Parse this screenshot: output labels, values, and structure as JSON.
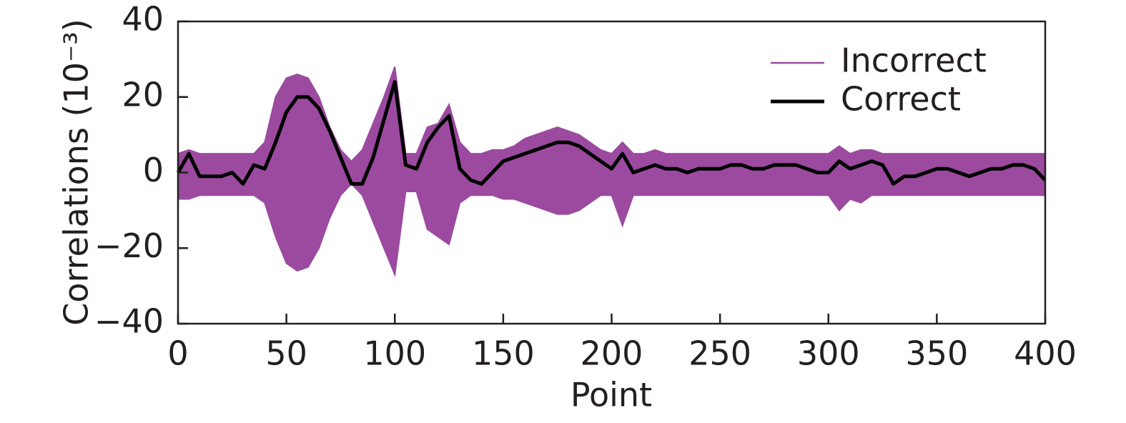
{
  "chart_data": {
    "type": "line",
    "xlabel": "Point",
    "ylabel": "Correlations (10⁻³)",
    "xlim": [
      0,
      400
    ],
    "xticks": [
      0,
      50,
      100,
      150,
      200,
      250,
      300,
      350,
      400
    ],
    "ylim": [
      -40,
      40
    ],
    "yticks": [
      {
        "value": -40,
        "label": "−40"
      },
      {
        "value": -20,
        "label": "−20"
      },
      0,
      20,
      40
    ],
    "legend": "upper right",
    "x": [
      0,
      5,
      10,
      15,
      20,
      25,
      30,
      35,
      40,
      45,
      50,
      55,
      60,
      65,
      70,
      75,
      80,
      85,
      90,
      95,
      100,
      105,
      110,
      115,
      120,
      125,
      130,
      135,
      140,
      145,
      150,
      155,
      160,
      165,
      170,
      175,
      180,
      185,
      190,
      195,
      200,
      205,
      210,
      215,
      220,
      225,
      230,
      235,
      240,
      245,
      250,
      255,
      260,
      265,
      270,
      275,
      280,
      285,
      290,
      295,
      300,
      305,
      310,
      315,
      320,
      325,
      330,
      335,
      340,
      345,
      350,
      355,
      360,
      365,
      370,
      375,
      380,
      385,
      390,
      395,
      400
    ],
    "series": [
      {
        "name": "Incorrect",
        "color": "#9b4a9f",
        "upper": [
          5,
          6,
          5,
          5,
          5,
          5,
          5,
          5,
          8,
          20,
          25,
          26,
          25,
          20,
          12,
          6,
          3,
          6,
          13,
          20,
          28,
          5,
          5,
          12,
          13,
          18,
          8,
          5,
          5,
          6,
          6,
          7,
          9,
          10,
          11,
          12,
          11,
          10,
          8,
          6,
          5,
          8,
          5,
          5,
          6,
          5,
          5,
          5,
          5,
          5,
          5,
          5,
          5,
          5,
          5,
          5,
          5,
          5,
          5,
          5,
          5,
          7,
          5,
          6,
          6,
          5,
          5,
          5,
          5,
          5,
          5,
          5,
          5,
          5,
          5,
          5,
          5,
          5,
          5,
          5,
          5
        ],
        "lower": [
          -7,
          -7,
          -6,
          -6,
          -6,
          -6,
          -6,
          -6,
          -8,
          -17,
          -24,
          -26,
          -25,
          -20,
          -12,
          -6,
          -3,
          -6,
          -13,
          -20,
          -27,
          -5,
          -5,
          -15,
          -17,
          -19,
          -8,
          -6,
          -6,
          -6,
          -7,
          -7,
          -8,
          -9,
          -10,
          -11,
          -11,
          -10,
          -8,
          -6,
          -6,
          -14,
          -6,
          -6,
          -6,
          -6,
          -6,
          -6,
          -6,
          -6,
          -6,
          -6,
          -6,
          -6,
          -6,
          -6,
          -6,
          -6,
          -6,
          -6,
          -6,
          -10,
          -7,
          -8,
          -6,
          -6,
          -6,
          -6,
          -6,
          -6,
          -6,
          -6,
          -6,
          -6,
          -6,
          -6,
          -6,
          -6,
          -6,
          -6,
          -6
        ]
      },
      {
        "name": "Correct",
        "color": "#000000",
        "values": [
          0,
          5,
          -1,
          -1,
          -1,
          0,
          -3,
          2,
          1,
          8,
          16,
          20,
          20,
          17,
          11,
          4,
          -3,
          -3,
          4,
          14,
          24,
          2,
          1,
          8,
          12,
          15,
          1,
          -2,
          -3,
          0,
          3,
          4,
          5,
          6,
          7,
          8,
          8,
          7,
          5,
          3,
          1,
          5,
          0,
          1,
          2,
          1,
          1,
          0,
          1,
          1,
          1,
          2,
          2,
          1,
          1,
          2,
          2,
          2,
          1,
          0,
          0,
          3,
          1,
          2,
          3,
          2,
          -3,
          -1,
          -1,
          0,
          1,
          1,
          0,
          -1,
          0,
          1,
          1,
          2,
          2,
          1,
          -2
        ]
      }
    ]
  }
}
